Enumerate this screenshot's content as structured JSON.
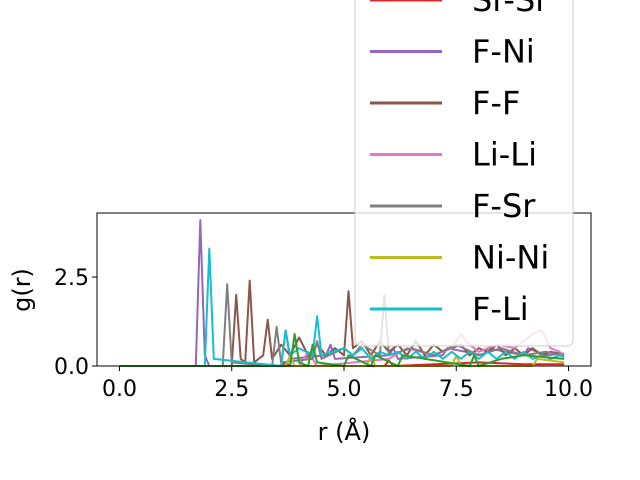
{
  "chart_data": {
    "type": "line",
    "title": "",
    "xlabel": "r (Å)",
    "ylabel": "g(r)",
    "xlim": [
      -0.5,
      10.5
    ],
    "ylim": [
      0,
      4.3
    ],
    "xticks": [
      "0.0",
      "2.5",
      "5.0",
      "7.5",
      "10.0"
    ],
    "xtick_values": [
      0,
      2.5,
      5,
      7.5,
      10
    ],
    "yticks": [
      "0.0",
      "2.5"
    ],
    "ytick_values": [
      0,
      2.5
    ],
    "legend": "upper-right",
    "series": [
      {
        "name": "Sr-Sr",
        "color": "#d62728",
        "x": [
          0,
          3.6,
          3.7,
          3.8,
          5.9,
          6.0,
          6.1,
          8.0,
          9.0,
          9.9
        ],
        "y": [
          0,
          0,
          0.1,
          0,
          0,
          0.15,
          0,
          0.1,
          0.05,
          0.05
        ]
      },
      {
        "name": "F-Ni",
        "color": "#9467bd",
        "x": [
          0,
          1.7,
          1.8,
          1.9,
          2.0,
          3.6,
          3.7,
          3.8,
          4.6,
          4.7,
          4.8,
          6.0,
          6.1,
          6.2,
          7.2,
          7.3,
          8.1,
          8.2,
          9.0,
          9.1,
          9.5,
          9.9
        ],
        "y": [
          0,
          0,
          4.1,
          0.3,
          0,
          0,
          1.0,
          0.2,
          0.3,
          0.6,
          0.2,
          0.3,
          0.5,
          0.2,
          0.3,
          0.5,
          0.3,
          0.5,
          0.3,
          0.5,
          0.3,
          0.35
        ]
      },
      {
        "name": "F-F",
        "color": "#8c564b",
        "x": [
          0,
          2.5,
          2.6,
          2.7,
          2.8,
          2.9,
          3.0,
          3.2,
          3.3,
          3.4,
          3.6,
          3.8,
          4.0,
          4.2,
          4.4,
          4.6,
          4.8,
          5.0,
          5.1,
          5.2,
          5.4,
          5.6,
          5.8,
          6.0,
          6.2,
          6.4,
          6.6,
          6.8,
          7.0,
          7.2,
          7.4,
          7.6,
          7.8,
          8.0,
          8.2,
          8.4,
          8.6,
          8.8,
          9.0,
          9.2,
          9.4,
          9.6,
          9.8,
          9.9
        ],
        "y": [
          0,
          0,
          2.0,
          0.2,
          0.1,
          2.4,
          0.1,
          0.3,
          1.3,
          0.2,
          0.6,
          0.3,
          0.8,
          0.3,
          0.6,
          0.3,
          0.5,
          0.3,
          2.1,
          0.5,
          0.7,
          0.3,
          0.7,
          0.4,
          0.6,
          0.3,
          0.7,
          0.3,
          0.6,
          0.4,
          0.5,
          0.6,
          0.3,
          0.5,
          0.4,
          0.6,
          0.3,
          0.5,
          0.3,
          0.5,
          0.3,
          0.4,
          0.35,
          0.3
        ]
      },
      {
        "name": "Li-Li",
        "color": "#e377c2",
        "x": [
          0,
          4.0,
          4.2,
          4.4,
          6.0,
          6.4,
          7.0,
          7.4,
          7.6,
          7.8,
          8.0,
          8.4,
          8.8,
          9.2,
          9.4,
          9.6,
          9.8,
          9.9
        ],
        "y": [
          0,
          0,
          0.4,
          0,
          0.2,
          0.5,
          0.3,
          0.5,
          0.9,
          0.6,
          0.4,
          0.6,
          0.5,
          0.9,
          1.0,
          0.5,
          0.4,
          0.3
        ]
      },
      {
        "name": "F-Sr",
        "color": "#7f7f7f",
        "x": [
          0,
          2.3,
          2.4,
          2.5,
          3.4,
          3.5,
          3.6,
          4.3,
          4.4,
          4.5,
          5.0,
          5.2,
          5.4,
          5.8,
          5.9,
          6.0,
          6.5,
          7.0,
          7.5,
          8.0,
          8.5,
          9.0,
          9.5,
          9.9
        ],
        "y": [
          0,
          0,
          2.3,
          0.1,
          0,
          1.1,
          0.1,
          0.2,
          0.7,
          0.2,
          0.5,
          0.3,
          0.6,
          0.3,
          2.0,
          0.3,
          0.5,
          0.3,
          0.6,
          0.3,
          0.5,
          0.3,
          0.4,
          0.3
        ]
      },
      {
        "name": "Ni-Ni",
        "color": "#bcbd22",
        "x": [
          0,
          3.7,
          3.8,
          3.9,
          5.5,
          5.6,
          5.7,
          7.4,
          7.5,
          7.6,
          9.2,
          9.3,
          9.9
        ],
        "y": [
          0,
          0,
          0.3,
          0,
          0,
          0.3,
          0,
          0,
          0.3,
          0,
          0,
          0.2,
          0.1
        ]
      },
      {
        "name": "F-Li",
        "color": "#17becf",
        "x": [
          0,
          1.9,
          2.0,
          2.1,
          3.6,
          3.7,
          3.8,
          4.0,
          4.3,
          4.4,
          4.5,
          5.0,
          5.2,
          5.4,
          5.6,
          5.8,
          6.0,
          6.2,
          6.4,
          6.6,
          6.8,
          7.0,
          7.2,
          7.4,
          7.6,
          7.8,
          8.0,
          8.2,
          8.4,
          8.6,
          8.8,
          9.0,
          9.2,
          9.4,
          9.6,
          9.8,
          9.9
        ],
        "y": [
          0,
          0,
          3.3,
          0.2,
          0,
          1.0,
          0.3,
          0.5,
          0.3,
          1.4,
          0.3,
          0.5,
          0.3,
          0.5,
          0.2,
          0.4,
          0.3,
          0.4,
          0.2,
          0.4,
          0.2,
          0.4,
          0.2,
          0.4,
          0.2,
          0.4,
          0.2,
          0.4,
          0.2,
          0.4,
          0.2,
          0.4,
          0.2,
          0.3,
          0.2,
          0.3,
          0.25
        ]
      },
      {
        "name": "",
        "color": "#2ca02c",
        "x": [
          0,
          3.8,
          3.9,
          4.0,
          4.2,
          4.3,
          4.4,
          5.0,
          5.1,
          5.6,
          5.7,
          6.2,
          6.3,
          7.8,
          7.9,
          8.0,
          8.5,
          9.0,
          9.9
        ],
        "y": [
          0,
          0,
          0.9,
          0.1,
          0,
          0.6,
          0.1,
          0,
          0.3,
          0,
          0.3,
          0,
          0.3,
          0,
          0.3,
          0,
          0.2,
          0.3,
          0.2
        ]
      }
    ],
    "legend_entries": [
      {
        "name": "Sr-Sr",
        "color": "#d62728"
      },
      {
        "name": "F-Ni",
        "color": "#9467bd"
      },
      {
        "name": "F-F",
        "color": "#8c564b"
      },
      {
        "name": "Li-Li",
        "color": "#e377c2"
      },
      {
        "name": "F-Sr",
        "color": "#7f7f7f"
      },
      {
        "name": "Ni-Ni",
        "color": "#bcbd22"
      },
      {
        "name": "F-Li",
        "color": "#17becf"
      }
    ]
  }
}
